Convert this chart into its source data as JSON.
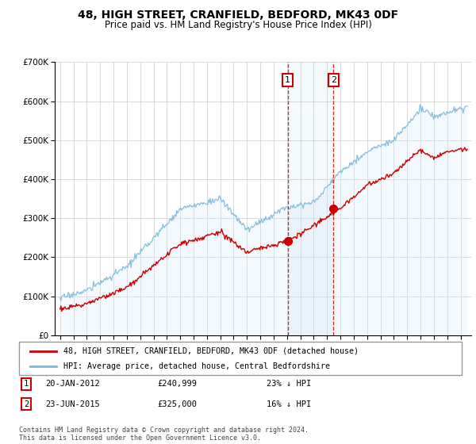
{
  "title": "48, HIGH STREET, CRANFIELD, BEDFORD, MK43 0DF",
  "subtitle": "Price paid vs. HM Land Registry's House Price Index (HPI)",
  "legend_line1": "48, HIGH STREET, CRANFIELD, BEDFORD, MK43 0DF (detached house)",
  "legend_line2": "HPI: Average price, detached house, Central Bedfordshire",
  "annotation1_date": "20-JAN-2012",
  "annotation1_price": "£240,999",
  "annotation1_hpi": "23% ↓ HPI",
  "annotation2_date": "23-JUN-2015",
  "annotation2_price": "£325,000",
  "annotation2_hpi": "16% ↓ HPI",
  "footer": "Contains HM Land Registry data © Crown copyright and database right 2024.\nThis data is licensed under the Open Government Licence v3.0.",
  "hpi_color": "#7ab8d9",
  "hpi_fill_color": "#d6eaf8",
  "price_color": "#cc0000",
  "annotation_box_color": "#cc0000",
  "sale1_x": 2012.055,
  "sale1_y": 240999,
  "sale2_x": 2015.478,
  "sale2_y": 325000,
  "ylim": [
    0,
    700000
  ],
  "xlim_min": 1994.6,
  "xlim_max": 2025.8,
  "background_color": "#ffffff",
  "plot_bg_color": "#ffffff",
  "grid_color": "#cccccc"
}
